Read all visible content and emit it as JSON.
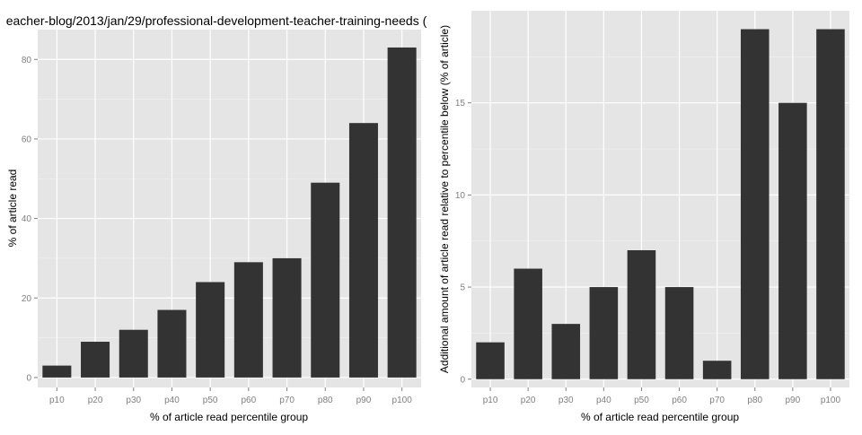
{
  "chart_data": [
    {
      "type": "bar",
      "title": "eacher-blog/2013/jan/29/professional-development-teacher-training-needs (",
      "xlabel": "% of article read percentile group",
      "ylabel": "% of article read",
      "categories": [
        "p10",
        "p20",
        "p30",
        "p40",
        "p50",
        "p60",
        "p70",
        "p80",
        "p90",
        "p100"
      ],
      "values": [
        3,
        9,
        12,
        17,
        24,
        29,
        30,
        49,
        64,
        83
      ],
      "ylim": [
        -2.5,
        87.5
      ],
      "yticks": [
        0,
        20,
        40,
        60,
        80
      ],
      "grid": true,
      "colors": {
        "panel": "#e5e5e5",
        "bar": "#333333",
        "grid_major": "#ffffff",
        "grid_minor": "#f2f2f2",
        "tick_text": "#7f7f7f",
        "label_text": "#000000"
      }
    },
    {
      "type": "bar",
      "title": "",
      "xlabel": "% of article read percentile group",
      "ylabel": "Additional amount of article read relative to percentile below (% of article)",
      "categories": [
        "p10",
        "p20",
        "p30",
        "p40",
        "p50",
        "p60",
        "p70",
        "p80",
        "p90",
        "p100"
      ],
      "values": [
        2,
        6,
        3,
        5,
        7,
        5,
        1,
        19,
        15,
        19
      ],
      "ylim": [
        -0.45,
        20.0
      ],
      "yticks": [
        0,
        5,
        10,
        15
      ],
      "grid": true,
      "colors": {
        "panel": "#e5e5e5",
        "bar": "#333333",
        "grid_major": "#ffffff",
        "grid_minor": "#f2f2f2",
        "tick_text": "#7f7f7f",
        "label_text": "#000000"
      }
    }
  ]
}
